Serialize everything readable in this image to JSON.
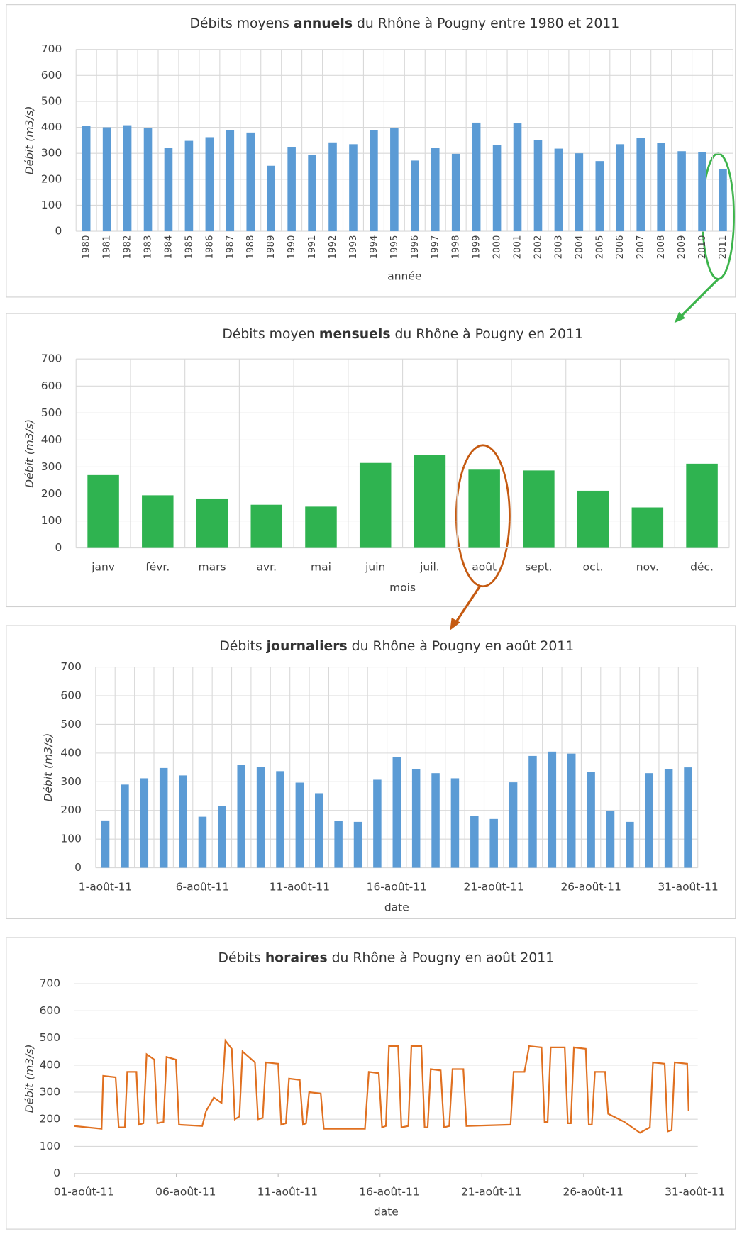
{
  "chart_data": [
    {
      "type": "bar",
      "title": [
        "Débits moyens ",
        "annuels",
        " du Rhône à Pougny entre 1980 et 2011"
      ],
      "x_label": "année",
      "y_label": "Débit (m3/s)",
      "categories": [
        "1980",
        "1981",
        "1982",
        "1983",
        "1984",
        "1985",
        "1986",
        "1987",
        "1988",
        "1989",
        "1990",
        "1991",
        "1992",
        "1993",
        "1994",
        "1995",
        "1996",
        "1997",
        "1998",
        "1999",
        "2000",
        "2001",
        "2002",
        "2003",
        "2004",
        "2005",
        "2006",
        "2007",
        "2008",
        "2009",
        "2010",
        "2011"
      ],
      "values": [
        405,
        400,
        408,
        398,
        320,
        348,
        362,
        390,
        380,
        252,
        325,
        295,
        342,
        335,
        388,
        398,
        272,
        320,
        298,
        418,
        332,
        415,
        350,
        318,
        300,
        270,
        335,
        358,
        340,
        308,
        305,
        238
      ],
      "color": "#5b9bd5",
      "ylim": [
        0,
        700
      ],
      "yticks": [
        0,
        100,
        200,
        300,
        400,
        500,
        600,
        700
      ],
      "grid": true,
      "rotate_labels": true
    },
    {
      "type": "bar",
      "title": [
        "Débits moyen ",
        "mensuels",
        " du Rhône à Pougny en 2011"
      ],
      "x_label": "mois",
      "y_label": "Débit (m3/s)",
      "categories": [
        "janv",
        "févr.",
        "mars",
        "avr.",
        "mai",
        "juin",
        "juil.",
        "août",
        "sept.",
        "oct.",
        "nov.",
        "déc."
      ],
      "values": [
        270,
        195,
        183,
        160,
        153,
        315,
        345,
        290,
        287,
        212,
        150,
        312
      ],
      "color": "#2fb350",
      "ylim": [
        0,
        700
      ],
      "yticks": [
        0,
        100,
        200,
        300,
        400,
        500,
        600,
        700
      ],
      "grid": true
    },
    {
      "type": "bar",
      "title": [
        "Débits ",
        "journaliers",
        " du Rhône à Pougny en août 2011"
      ],
      "x_label": "date",
      "y_label": "Débit (m3/s)",
      "categories": [
        "1-août-11",
        null,
        null,
        null,
        null,
        "6-août-11",
        null,
        null,
        null,
        null,
        "11-août-11",
        null,
        null,
        null,
        null,
        "16-août-11",
        null,
        null,
        null,
        null,
        "21-août-11",
        null,
        null,
        null,
        null,
        "26-août-11",
        null,
        null,
        null,
        null,
        "31-août-11"
      ],
      "values": [
        165,
        290,
        312,
        348,
        322,
        178,
        215,
        360,
        352,
        337,
        297,
        260,
        163,
        160,
        307,
        385,
        345,
        330,
        312,
        180,
        170,
        298,
        390,
        405,
        398,
        335,
        197,
        160,
        330,
        345,
        350
      ],
      "color": "#5b9bd5",
      "ylim": [
        0,
        700
      ],
      "yticks": [
        0,
        100,
        200,
        300,
        400,
        500,
        600,
        700
      ],
      "grid": true
    },
    {
      "type": "line",
      "title": [
        "Débits ",
        "horaires",
        " du Rhône à Pougny en août 2011"
      ],
      "x_label": "date",
      "y_label": "Débit (m3/s)",
      "x": [
        1.0,
        2.33,
        2.41,
        3.02,
        3.17,
        3.47,
        3.59,
        4.04,
        4.16,
        4.38,
        4.54,
        4.92,
        5.07,
        5.37,
        5.52,
        5.98,
        6.13,
        7.27,
        7.46,
        7.84,
        8.22,
        8.41,
        8.72,
        8.87,
        9.1,
        9.25,
        9.86,
        10.01,
        10.24,
        10.39,
        11.0,
        11.15,
        11.38,
        11.53,
        12.06,
        12.22,
        12.37,
        12.52,
        13.09,
        13.24,
        15.26,
        15.45,
        15.94,
        16.1,
        16.29,
        16.44,
        16.89,
        17.05,
        17.39,
        17.54,
        18.03,
        18.19,
        18.34,
        18.49,
        18.98,
        19.14,
        19.4,
        19.56,
        20.09,
        20.24,
        22.41,
        22.56,
        23.09,
        23.32,
        23.93,
        24.08,
        24.23,
        24.38,
        25.07,
        25.22,
        25.37,
        25.52,
        26.1,
        26.25,
        26.4,
        26.55,
        27.05,
        27.2,
        28.0,
        28.76,
        29.25,
        29.4,
        29.97,
        30.12,
        30.32,
        30.47,
        31.08,
        31.15
      ],
      "values": [
        175,
        165,
        360,
        355,
        170,
        170,
        375,
        375,
        180,
        185,
        440,
        420,
        185,
        190,
        430,
        420,
        180,
        175,
        230,
        280,
        260,
        490,
        460,
        200,
        210,
        450,
        410,
        200,
        205,
        410,
        405,
        180,
        185,
        350,
        345,
        180,
        185,
        300,
        295,
        165,
        165,
        375,
        370,
        170,
        175,
        470,
        470,
        170,
        175,
        470,
        470,
        170,
        170,
        385,
        380,
        170,
        175,
        385,
        385,
        175,
        180,
        375,
        375,
        470,
        465,
        190,
        190,
        465,
        465,
        185,
        185,
        465,
        460,
        180,
        180,
        375,
        375,
        220,
        190,
        150,
        170,
        410,
        405,
        155,
        160,
        410,
        405,
        230
      ],
      "color": "#e07020",
      "xlim": [
        1,
        31.6
      ],
      "ylim": [
        0,
        700
      ],
      "yticks": [
        0,
        100,
        200,
        300,
        400,
        500,
        600,
        700
      ],
      "grid": true,
      "xticks": [
        {
          "value": 1,
          "label": "01-août-11"
        },
        {
          "value": 6,
          "label": "06-août-11"
        },
        {
          "value": 11,
          "label": "11-août-11"
        },
        {
          "value": 16,
          "label": "16-août-11"
        },
        {
          "value": 21,
          "label": "21-août-11"
        },
        {
          "value": 26,
          "label": "26-août-11"
        },
        {
          "value": 31,
          "label": "31-août-11"
        }
      ]
    }
  ]
}
